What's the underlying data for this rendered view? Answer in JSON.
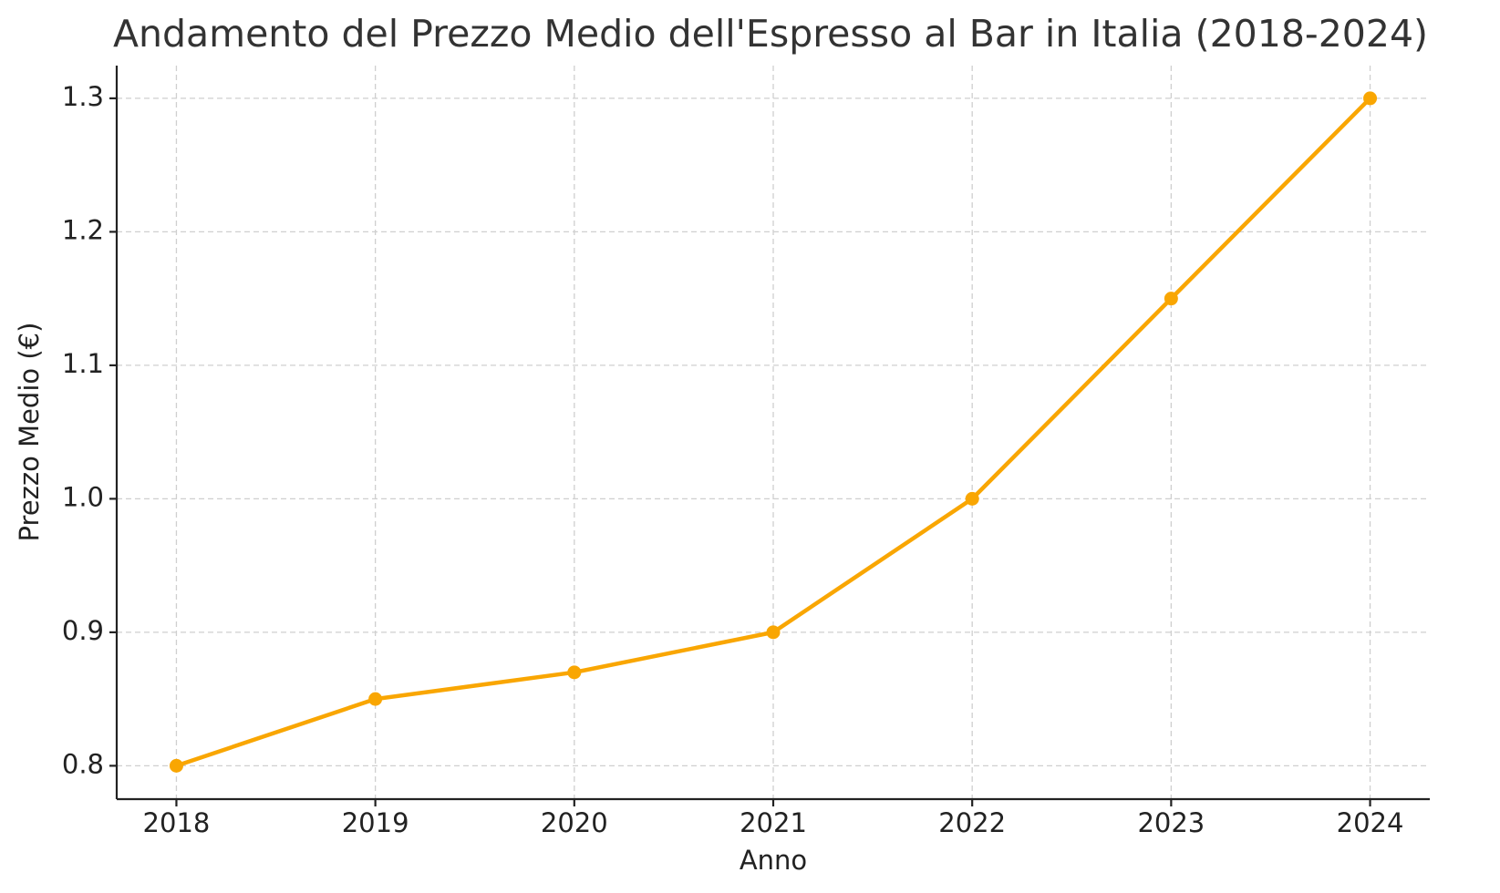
{
  "chart_data": {
    "type": "line",
    "title": "Andamento del Prezzo Medio dell'Espresso al Bar in Italia (2018-2024)",
    "x_label": "Anno",
    "y_label": "Prezzo Medio (€)",
    "x": [
      2018,
      2019,
      2020,
      2021,
      2022,
      2023,
      2024
    ],
    "series": [
      {
        "name": "Prezzo Medio",
        "color": "#f9a602",
        "values": [
          0.8,
          0.85,
          0.87,
          0.9,
          1.0,
          1.15,
          1.3
        ]
      }
    ],
    "xlim": [
      2017.7,
      2024.3
    ],
    "xticks": [
      2018,
      2019,
      2020,
      2021,
      2022,
      2023,
      2024
    ],
    "ylim": [
      0.775,
      1.3245
    ],
    "yticks": [
      0.8,
      0.9,
      {
        "value": 1.0,
        "label": "1.0"
      },
      1.1,
      1.2,
      1.3
    ],
    "grid": true
  }
}
